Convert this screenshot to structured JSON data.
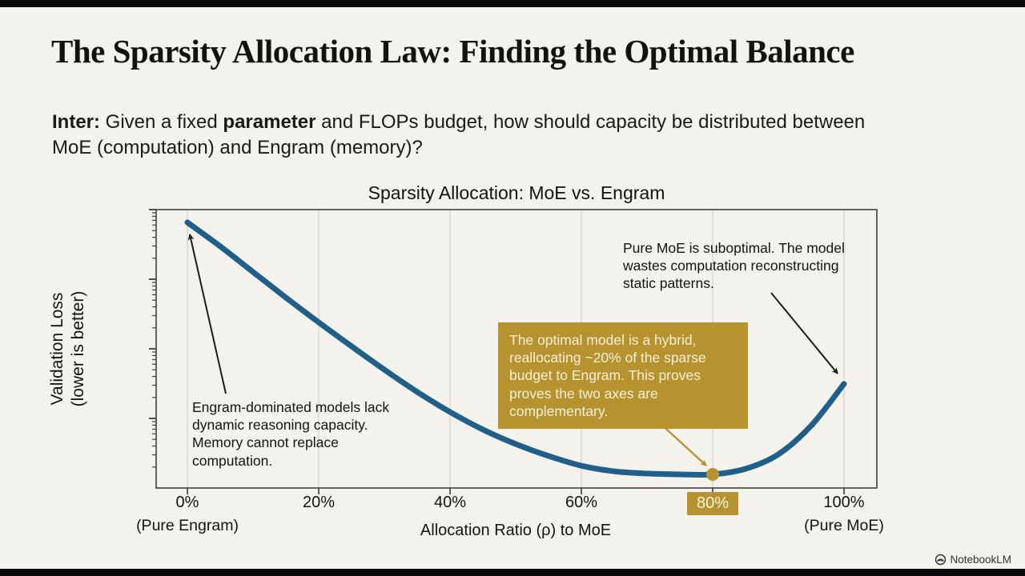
{
  "slide": {
    "title": "The Sparsity Allocation Law: Finding the Optimal Balance",
    "question": {
      "bold_prefix": "Inter:",
      "text_1": " Given a fixed ",
      "bold_2": "parameter",
      "text_2": " and FLOPs budget, how should capacity be distributed between MoE (computation) and Engram (memory)?"
    },
    "watermark": "NotebookLM"
  },
  "chart_data": {
    "type": "line",
    "title": "Sparsity Allocation: MoE vs. Engram",
    "xlabel": "Allocation Ratio (ρ) to MoE",
    "ylabel_line1": "Validation Loss",
    "ylabel_line2": "(lower is better)",
    "y_axis_numeric_labels": false,
    "y_axis_scale_hint": "log-style minor ticks, unlabeled",
    "x_ticks_percent": [
      0,
      20,
      40,
      60,
      80,
      100
    ],
    "x_tick_labels": [
      "0%",
      "20%",
      "40%",
      "60%",
      "80%",
      "100%"
    ],
    "x_sublabel_left": "(Pure Engram)",
    "x_sublabel_right": "(Pure MoE)",
    "highlighted_tick": "80%",
    "grid": true,
    "series": [
      {
        "name": "Validation loss vs. allocation ratio",
        "x": [
          0,
          5,
          10,
          15,
          20,
          25,
          30,
          35,
          40,
          45,
          50,
          55,
          60,
          65,
          70,
          75,
          80,
          85,
          90,
          95,
          100
        ],
        "y_norm": [
          0.954,
          0.868,
          0.776,
          0.684,
          0.595,
          0.509,
          0.425,
          0.345,
          0.273,
          0.21,
          0.158,
          0.115,
          0.08,
          0.06,
          0.052,
          0.049,
          0.049,
          0.069,
          0.121,
          0.224,
          0.374
        ]
      }
    ],
    "optimal_point": {
      "x_percent": 80,
      "y_norm": 0.049,
      "label": "80%"
    },
    "annotations": [
      {
        "id": "engram-note",
        "text": "Engram-dominated models lack dynamic reasoning capacity. Memory cannot replace computation.",
        "points_to": "curve start at 0%"
      },
      {
        "id": "moe-note",
        "text": "Pure MoE is suboptimal. The model wastes computation reconstructing static patterns.",
        "points_to": "curve end at 100%"
      },
      {
        "id": "optimal-callout",
        "text": "The optimal model is a hybrid, reallocating ~20% of the sparse budget to Engram. This proves proves the two axes are complementary.",
        "points_to": "minimum at 80%"
      }
    ],
    "colors": {
      "curve": "#1f5f8a",
      "gold": "#b7932f",
      "gold_text": "#f7f0d8",
      "background": "#f4f2ec",
      "grid": "#d9d5cc",
      "axis": "#3f3e3a",
      "arrow_dark": "#1c1c1c"
    },
    "legend": false
  }
}
